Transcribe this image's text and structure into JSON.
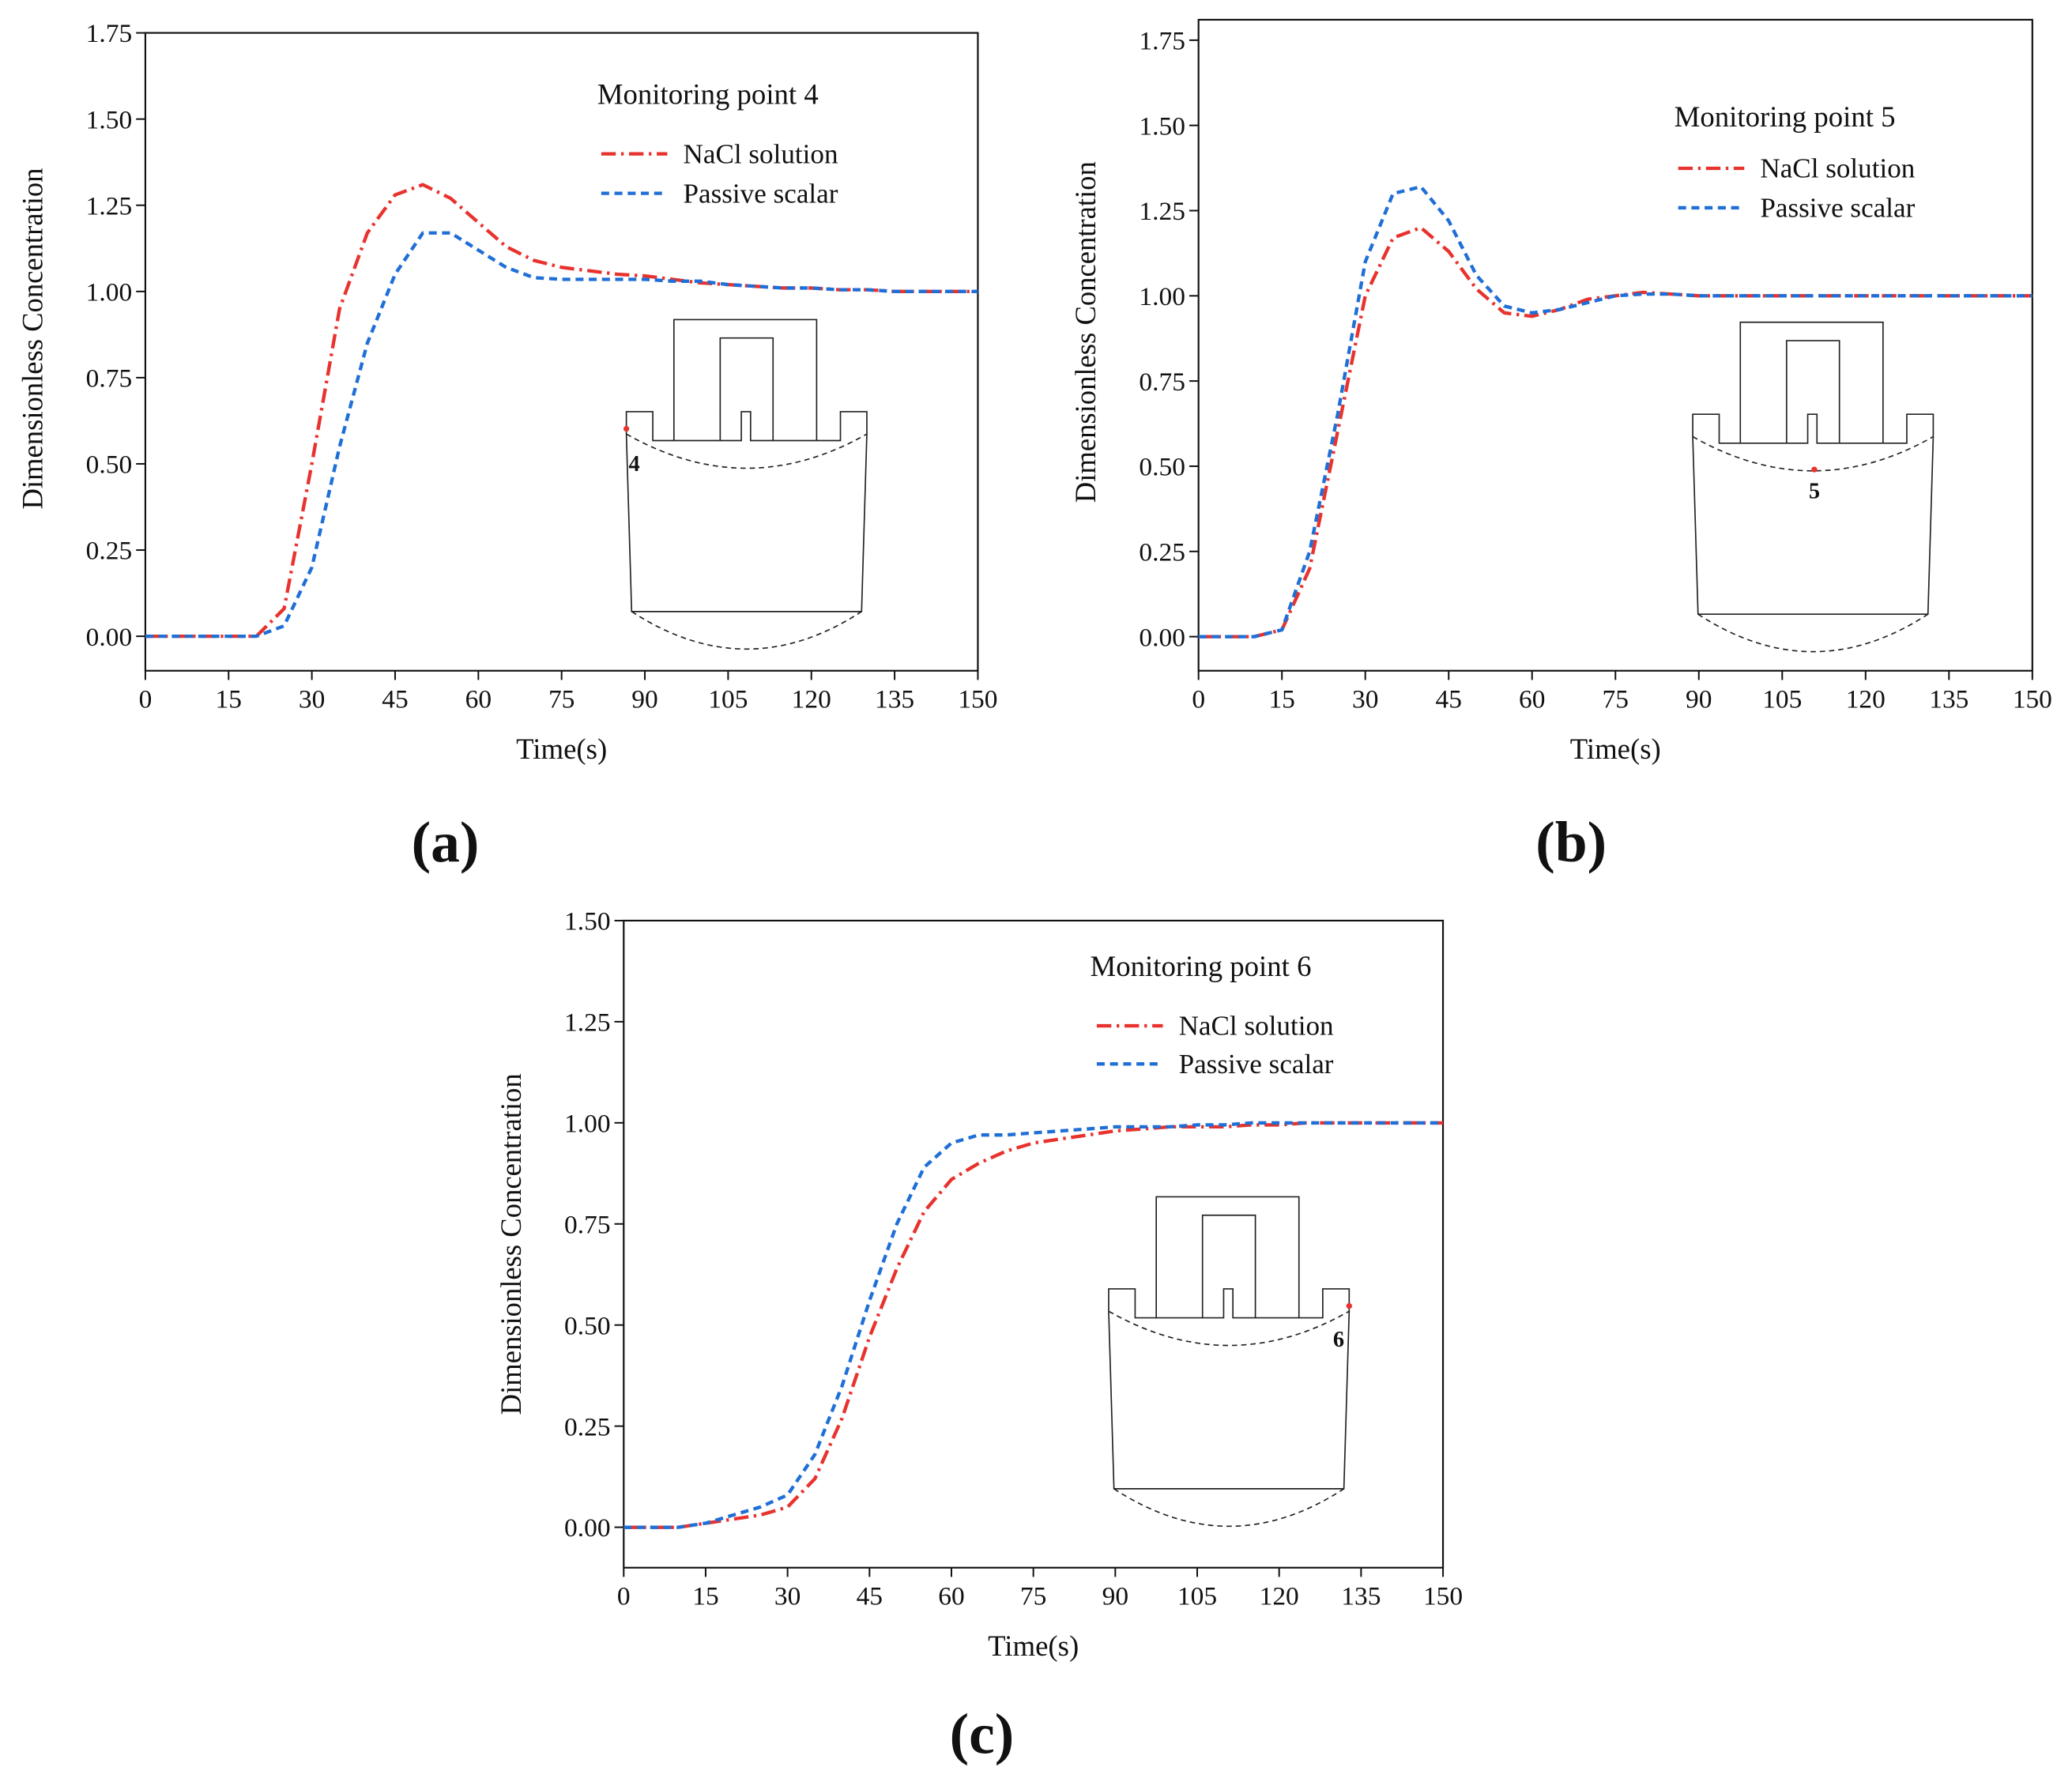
{
  "chart_data": [
    {
      "type": "line",
      "panel": "(a)",
      "annotation": "Monitoring point 4",
      "point_label": "4",
      "xlabel": "Time(s)",
      "ylabel": "Dimensionless Concentration",
      "xlim": [
        0,
        150
      ],
      "ylim": [
        -0.1,
        1.75
      ],
      "xticks": [
        0,
        15,
        30,
        45,
        60,
        75,
        90,
        105,
        120,
        135,
        150
      ],
      "yticks": [
        {
          "value": 0,
          "label": "0.00"
        },
        {
          "value": 0.25,
          "label": "0.25"
        },
        {
          "value": 0.5,
          "label": "0.50"
        },
        {
          "value": 0.75,
          "label": "0.75"
        },
        {
          "value": 1,
          "label": "1.00"
        },
        {
          "value": 1.25,
          "label": "1.25"
        },
        {
          "value": 1.5,
          "label": "1.50"
        },
        {
          "value": 1.75,
          "label": "1.75"
        }
      ],
      "x": [
        0,
        5,
        10,
        15,
        20,
        25,
        30,
        35,
        40,
        45,
        50,
        55,
        60,
        65,
        70,
        75,
        80,
        85,
        90,
        95,
        100,
        105,
        110,
        115,
        120,
        125,
        130,
        135,
        140,
        145,
        150
      ],
      "series": [
        {
          "name": "NaCl solution",
          "color": "#e8322e",
          "linestyle": "dashdot",
          "values": [
            0,
            0,
            0,
            0,
            0,
            0.08,
            0.5,
            0.95,
            1.17,
            1.28,
            1.31,
            1.27,
            1.2,
            1.13,
            1.09,
            1.07,
            1.06,
            1.05,
            1.045,
            1.035,
            1.025,
            1.02,
            1.015,
            1.01,
            1.01,
            1.005,
            1.005,
            1,
            1,
            1,
            1
          ]
        },
        {
          "name": "Passive scalar",
          "color": "#1f6fd6",
          "linestyle": "dashed",
          "values": [
            0,
            0,
            0,
            0,
            0,
            0.03,
            0.2,
            0.55,
            0.85,
            1.05,
            1.17,
            1.17,
            1.12,
            1.07,
            1.04,
            1.035,
            1.035,
            1.035,
            1.035,
            1.03,
            1.03,
            1.02,
            1.015,
            1.01,
            1.01,
            1.005,
            1.005,
            1,
            1,
            1,
            1
          ]
        }
      ]
    },
    {
      "type": "line",
      "panel": "(b)",
      "annotation": "Monitoring point 5",
      "point_label": "5",
      "xlabel": "Time(s)",
      "ylabel": "Dimensionless Concentration",
      "xlim": [
        0,
        150
      ],
      "ylim": [
        -0.1,
        1.81
      ],
      "xticks": [
        0,
        15,
        30,
        45,
        60,
        75,
        90,
        105,
        120,
        135,
        150
      ],
      "yticks": [
        {
          "value": 0,
          "label": "0.00"
        },
        {
          "value": 0.25,
          "label": "0.25"
        },
        {
          "value": 0.5,
          "label": "0.50"
        },
        {
          "value": 0.75,
          "label": "0.75"
        },
        {
          "value": 1,
          "label": "1.00"
        },
        {
          "value": 1.25,
          "label": "1.25"
        },
        {
          "value": 1.5,
          "label": "1.50"
        },
        {
          "value": 1.75,
          "label": "1.75"
        }
      ],
      "x": [
        0,
        5,
        10,
        15,
        20,
        25,
        30,
        35,
        40,
        45,
        50,
        55,
        60,
        65,
        70,
        75,
        80,
        85,
        90,
        95,
        100,
        105,
        110,
        115,
        120,
        125,
        130,
        135,
        140,
        145,
        150
      ],
      "series": [
        {
          "name": "NaCl solution",
          "color": "#e8322e",
          "linestyle": "dashdot",
          "values": [
            0,
            0,
            0,
            0.02,
            0.2,
            0.6,
            1.0,
            1.17,
            1.2,
            1.13,
            1.02,
            0.95,
            0.94,
            0.96,
            0.99,
            1.0,
            1.01,
            1.005,
            1.0,
            1,
            1,
            1,
            1,
            1,
            1,
            1,
            1,
            1,
            1,
            1,
            1
          ]
        },
        {
          "name": "Passive scalar",
          "color": "#1f6fd6",
          "linestyle": "dashed",
          "values": [
            0,
            0,
            0,
            0.02,
            0.25,
            0.65,
            1.1,
            1.3,
            1.32,
            1.22,
            1.06,
            0.97,
            0.95,
            0.96,
            0.98,
            1.0,
            1.005,
            1.005,
            1.0,
            1,
            1,
            1,
            1,
            1,
            1,
            1,
            1,
            1,
            1,
            1,
            1
          ]
        }
      ]
    },
    {
      "type": "line",
      "panel": "(c)",
      "annotation": "Monitoring point 6",
      "point_label": "6",
      "xlabel": "Time(s)",
      "ylabel": "Dimensionless Concentration",
      "xlim": [
        0,
        150
      ],
      "ylim": [
        -0.1,
        1.5
      ],
      "xticks": [
        0,
        15,
        30,
        45,
        60,
        75,
        90,
        105,
        120,
        135,
        150
      ],
      "yticks": [
        {
          "value": 0,
          "label": "0.00"
        },
        {
          "value": 0.25,
          "label": "0.25"
        },
        {
          "value": 0.5,
          "label": "0.50"
        },
        {
          "value": 0.75,
          "label": "0.75"
        },
        {
          "value": 1,
          "label": "1.00"
        },
        {
          "value": 1.25,
          "label": "1.25"
        },
        {
          "value": 1.5,
          "label": "1.50"
        }
      ],
      "x": [
        0,
        5,
        10,
        15,
        20,
        25,
        30,
        35,
        40,
        45,
        50,
        55,
        60,
        65,
        70,
        75,
        80,
        85,
        90,
        95,
        100,
        105,
        110,
        115,
        120,
        125,
        130,
        135,
        140,
        145,
        150
      ],
      "series": [
        {
          "name": "NaCl solution",
          "color": "#e8322e",
          "linestyle": "dashdot",
          "values": [
            0,
            0,
            0,
            0.01,
            0.02,
            0.03,
            0.05,
            0.12,
            0.27,
            0.47,
            0.64,
            0.78,
            0.86,
            0.9,
            0.93,
            0.95,
            0.96,
            0.97,
            0.98,
            0.985,
            0.99,
            0.99,
            0.99,
            0.995,
            0.995,
            1,
            1,
            1,
            1,
            1,
            1
          ]
        },
        {
          "name": "Passive scalar",
          "color": "#1f6fd6",
          "linestyle": "dashed",
          "values": [
            0,
            0,
            0,
            0.01,
            0.03,
            0.05,
            0.08,
            0.18,
            0.35,
            0.56,
            0.75,
            0.89,
            0.95,
            0.97,
            0.97,
            0.975,
            0.98,
            0.985,
            0.99,
            0.99,
            0.99,
            0.995,
            0.995,
            1,
            1,
            1,
            1,
            1,
            1,
            1,
            1
          ]
        }
      ]
    }
  ]
}
